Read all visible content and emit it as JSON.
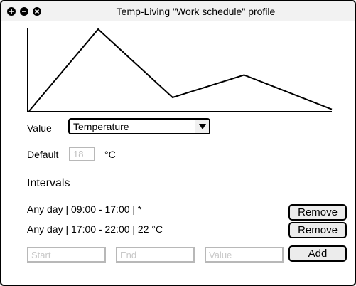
{
  "window": {
    "title": "Temp-Living \"Work schedule\" profile",
    "controls": [
      "maximize-icon",
      "minimize-icon",
      "close-icon"
    ]
  },
  "graph": {
    "series": [
      {
        "x": 0,
        "y": 0
      },
      {
        "x": 22.8,
        "y": 100
      },
      {
        "x": 47.4,
        "y": 16.5
      },
      {
        "x": 71,
        "y": 44
      },
      {
        "x": 100,
        "y": 2
      }
    ]
  },
  "value_field": {
    "label": "Value",
    "selected": "Temperature"
  },
  "default_field": {
    "label": "Default",
    "placeholder": "18",
    "unit": "°C"
  },
  "intervals": {
    "heading": "Intervals",
    "rows": [
      {
        "text": "Any day | 09:00 - 17:00 | *",
        "remove_label": "Remove"
      },
      {
        "text": "Any day | 17:00 - 22:00 | 22 °C",
        "remove_label": "Remove"
      }
    ],
    "new": {
      "start_placeholder": "Start",
      "end_placeholder": "End",
      "value_placeholder": "Value",
      "add_label": "Add"
    }
  },
  "colors": {
    "titlebar": "#f2f2f2",
    "button": "#ececec",
    "input_border": "#b8b8b8",
    "placeholder": "#c8c8c8"
  }
}
